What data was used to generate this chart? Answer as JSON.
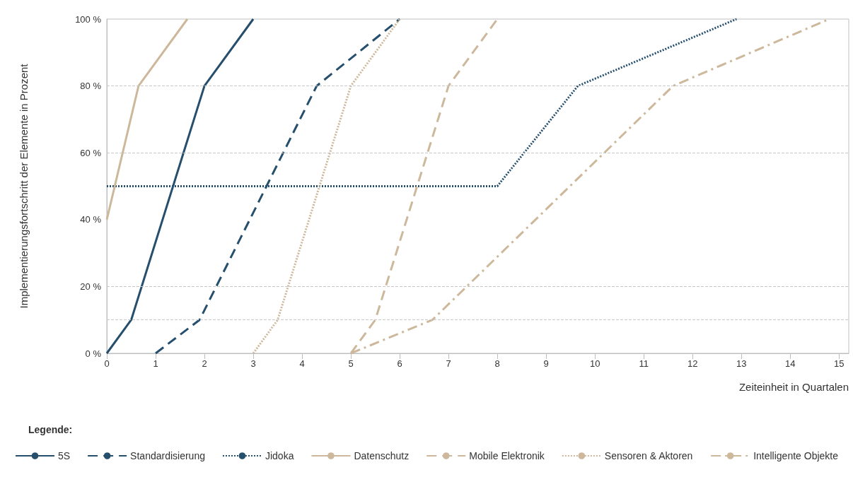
{
  "chart_data": {
    "type": "line",
    "xlabel": "Zeiteinheit in Quartalen",
    "ylabel": "Implementierungsfortschritt der Elemente in Prozent",
    "legend_title": "Legende:",
    "legend": "bottom",
    "grid": false,
    "marker": "none",
    "xlim": [
      0,
      15.2
    ],
    "xticks": [
      0,
      1,
      2,
      3,
      4,
      5,
      6,
      7,
      8,
      9,
      10,
      11,
      12,
      13,
      14,
      15
    ],
    "ylim": [
      0,
      100
    ],
    "yticks": [
      {
        "value": 0,
        "label": "0 %"
      },
      {
        "value": 20,
        "label": "20 %"
      },
      {
        "value": 40,
        "label": "40 %"
      },
      {
        "value": 60,
        "label": "60 %"
      },
      {
        "value": 80,
        "label": "80 %"
      },
      {
        "value": 100,
        "label": "100 %"
      }
    ],
    "ref_lines": [
      {
        "axis": "y",
        "value": 10,
        "label": null,
        "color": "#c8c8c8",
        "line_style": "dashed"
      },
      {
        "axis": "y",
        "value": 20,
        "label": null,
        "color": "#c8c8c8",
        "line_style": "dashed"
      },
      {
        "axis": "y",
        "value": 60,
        "label": null,
        "color": "#c8c8c8",
        "line_style": "dashed"
      },
      {
        "axis": "y",
        "value": 80,
        "label": null,
        "color": "#c8c8c8",
        "line_style": "dashed"
      }
    ],
    "series": [
      {
        "name": "5S",
        "color": "#264f6e",
        "line_style": "solid",
        "x": [
          0,
          0.5,
          2,
          3
        ],
        "values": [
          0,
          10,
          80,
          100
        ]
      },
      {
        "name": "Standardisierung",
        "color": "#264f6e",
        "line_style": "dashed",
        "x": [
          1,
          1.9,
          4.3,
          6
        ],
        "values": [
          0,
          10,
          80,
          100
        ]
      },
      {
        "name": "Jidoka",
        "color": "#264f6e",
        "line_style": "dotted",
        "x": [
          0,
          8,
          9.65,
          12.9
        ],
        "values": [
          50,
          50,
          80,
          100
        ]
      },
      {
        "name": "Datenschutz",
        "color": "#cdb89c",
        "line_style": "solid",
        "x": [
          0,
          0.65,
          1.65
        ],
        "values": [
          40,
          80,
          100
        ]
      },
      {
        "name": "Mobile Elektronik",
        "color": "#cdb89c",
        "line_style": "dashed",
        "x": [
          5,
          5.5,
          7,
          8
        ],
        "values": [
          0,
          10,
          80,
          100
        ]
      },
      {
        "name": "Sensoren & Aktoren",
        "color": "#cdb89c",
        "line_style": "dotted",
        "x": [
          3,
          3.5,
          5,
          6
        ],
        "values": [
          0,
          10,
          80,
          100
        ]
      },
      {
        "name": "Intelligente Objekte",
        "color": "#cdb89c",
        "line_style": "dashdot",
        "x": [
          5,
          6.67,
          11.6,
          14.8
        ],
        "values": [
          0,
          10,
          80,
          100
        ]
      }
    ]
  }
}
